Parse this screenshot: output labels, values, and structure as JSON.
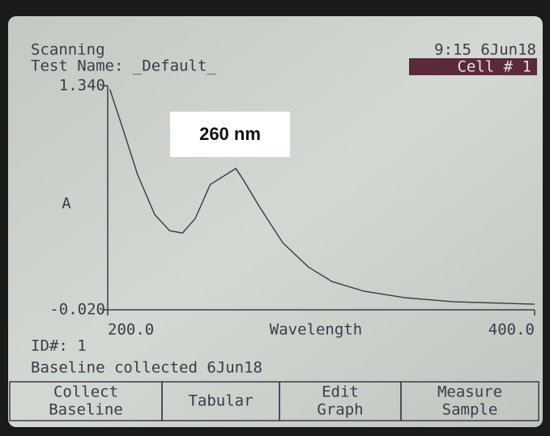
{
  "header": {
    "mode": "Scanning",
    "test_name": "Test Name: _Default_",
    "clock": "9:15 6Jun18",
    "cell": "Cell # 1"
  },
  "chart_data": {
    "type": "line",
    "annotation": "260 nm",
    "y_label": "A",
    "x_label": "Wavelength",
    "x": [
      201,
      206,
      214,
      222,
      229,
      235,
      241,
      248,
      260,
      263,
      271,
      282,
      294,
      305,
      320,
      339,
      362,
      400
    ],
    "values": [
      1.318,
      1.122,
      0.8,
      0.558,
      0.46,
      0.446,
      0.534,
      0.74,
      0.838,
      0.78,
      0.607,
      0.387,
      0.24,
      0.152,
      0.093,
      0.054,
      0.029,
      0.014
    ],
    "color": "#3a3848",
    "xlim": [
      200,
      400
    ],
    "ylim": [
      -0.02,
      1.34
    ],
    "xticks": [
      {
        "value": 200,
        "label": "200.0"
      },
      {
        "value": 400,
        "label": "400.0"
      }
    ],
    "yticks": [
      {
        "value": -0.02,
        "label": "-0.020"
      },
      {
        "value": 1.34,
        "label": "1.340"
      }
    ]
  },
  "footer": {
    "id": "ID#: 1",
    "status": "Baseline collected 6Jun18"
  },
  "buttons": [
    [
      "Collect",
      "Baseline"
    ],
    [
      "Tabular"
    ],
    [
      "Edit",
      "Graph"
    ],
    [
      "Measure",
      "Sample"
    ]
  ]
}
